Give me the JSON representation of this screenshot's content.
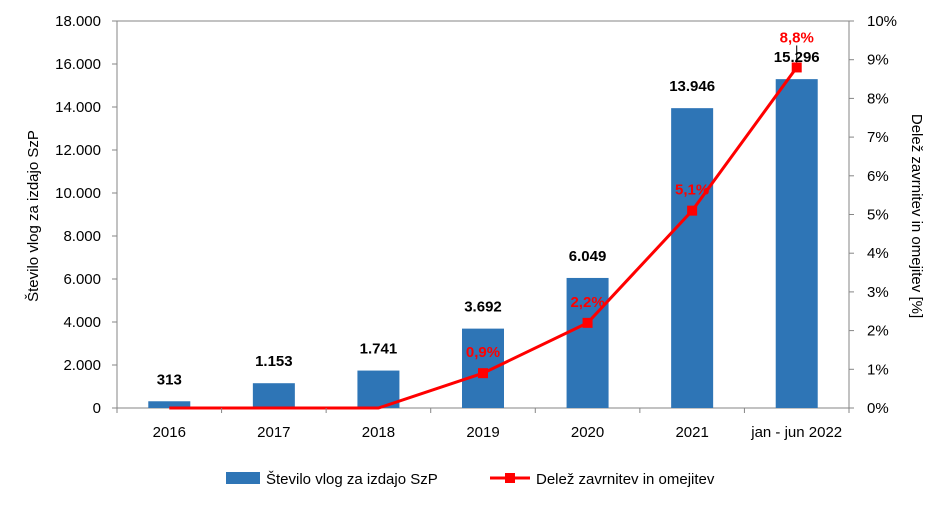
{
  "chart_data": {
    "type": "bar",
    "title": "",
    "categories": [
      "2016",
      "2017",
      "2018",
      "2019",
      "2020",
      "2021",
      "jan - jun 2022"
    ],
    "series": [
      {
        "name": "Število vlog za izdajo SzP",
        "type": "bar",
        "axis": "left",
        "values": [
          313,
          1153,
          1741,
          3692,
          6049,
          13946,
          15296
        ],
        "labels": [
          "313",
          "1.153",
          "1.741",
          "3.692",
          "6.049",
          "13.946",
          "15.296"
        ],
        "color": "#2e75b6"
      },
      {
        "name": "Delež zavrnitev in omejitev",
        "type": "line",
        "axis": "right",
        "values": [
          0,
          0,
          0,
          0.9,
          2.2,
          5.1,
          8.8
        ],
        "labels": [
          "",
          "",
          "",
          "0,9%",
          "2,2%",
          "5,1%",
          "8,8%"
        ],
        "color": "#ff0000"
      }
    ],
    "ylabel": "Število vlog za izdajo SzP",
    "y2label": "Delež zavrnitev in omejitev [%]",
    "ylim": [
      0,
      18000
    ],
    "y2lim": [
      0,
      10
    ],
    "yticks": [
      "0",
      "2.000",
      "4.000",
      "6.000",
      "8.000",
      "10.000",
      "12.000",
      "14.000",
      "16.000",
      "18.000"
    ],
    "y2ticks": [
      "0%",
      "1%",
      "2%",
      "3%",
      "4%",
      "5%",
      "6%",
      "7%",
      "8%",
      "9%",
      "10%"
    ],
    "legend_position": "bottom",
    "grid": false
  }
}
